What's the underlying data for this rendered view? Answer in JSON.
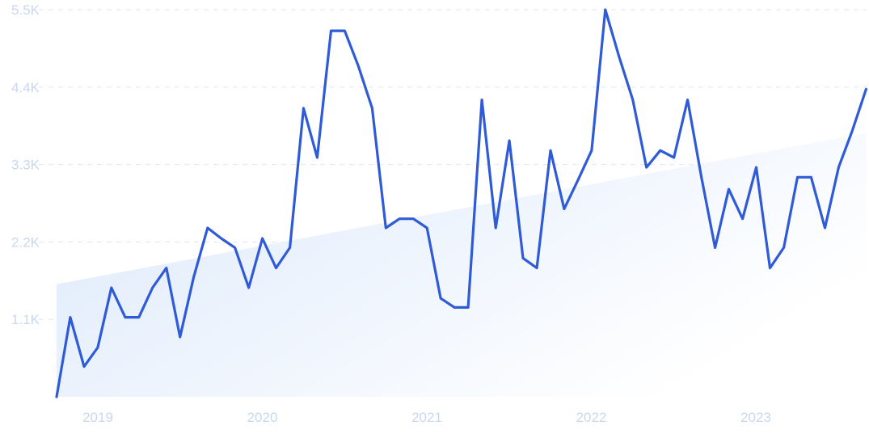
{
  "chart_data": {
    "type": "line",
    "x_tick_labels": [
      "2019",
      "2020",
      "2021",
      "2022",
      "2023"
    ],
    "y_tick_labels": [
      "1.1K",
      "2.2K",
      "3.3K",
      "4.4K",
      "5.5K"
    ],
    "y_ticks": [
      1100,
      2200,
      3300,
      4400,
      5500
    ],
    "ylim": [
      0,
      5500
    ],
    "xlim": [
      2018.75,
      2023.67
    ],
    "grid": true,
    "series": [
      {
        "color": "#2f5ad8",
        "x": [
          2018.75,
          2018.833,
          2018.917,
          2019.0,
          2019.083,
          2019.167,
          2019.25,
          2019.333,
          2019.417,
          2019.5,
          2019.583,
          2019.667,
          2019.75,
          2019.833,
          2019.917,
          2020.0,
          2020.083,
          2020.167,
          2020.25,
          2020.333,
          2020.417,
          2020.5,
          2020.583,
          2020.667,
          2020.75,
          2020.833,
          2020.917,
          2021.0,
          2021.083,
          2021.167,
          2021.25,
          2021.333,
          2021.417,
          2021.5,
          2021.583,
          2021.667,
          2021.75,
          2021.833,
          2021.917,
          2022.0,
          2022.083,
          2022.167,
          2022.25,
          2022.333,
          2022.417,
          2022.5,
          2022.583,
          2022.667,
          2022.75,
          2022.833,
          2022.917,
          2023.0,
          2023.083,
          2023.167,
          2023.25,
          2023.333,
          2023.417,
          2023.5,
          2023.583,
          2023.667
        ],
        "y": [
          0,
          1130,
          430,
          700,
          1550,
          1130,
          1130,
          1550,
          1830,
          850,
          1700,
          2400,
          2250,
          2120,
          1550,
          2250,
          1830,
          2120,
          4100,
          3400,
          5200,
          5200,
          4700,
          4100,
          2400,
          2530,
          2530,
          2400,
          1400,
          1270,
          1270,
          4220,
          2400,
          3640,
          1970,
          1830,
          3500,
          2670,
          3080,
          3500,
          5500,
          4830,
          4220,
          3260,
          3500,
          3400,
          4220,
          3120,
          2120,
          2950,
          2530,
          3260,
          1830,
          2120,
          3120,
          3120,
          2400,
          3260,
          3780,
          4370
        ]
      }
    ],
    "trend": {
      "x": [
        2018.75,
        2023.67
      ],
      "y": [
        1600,
        3750
      ],
      "color": "#dce9fb"
    }
  }
}
